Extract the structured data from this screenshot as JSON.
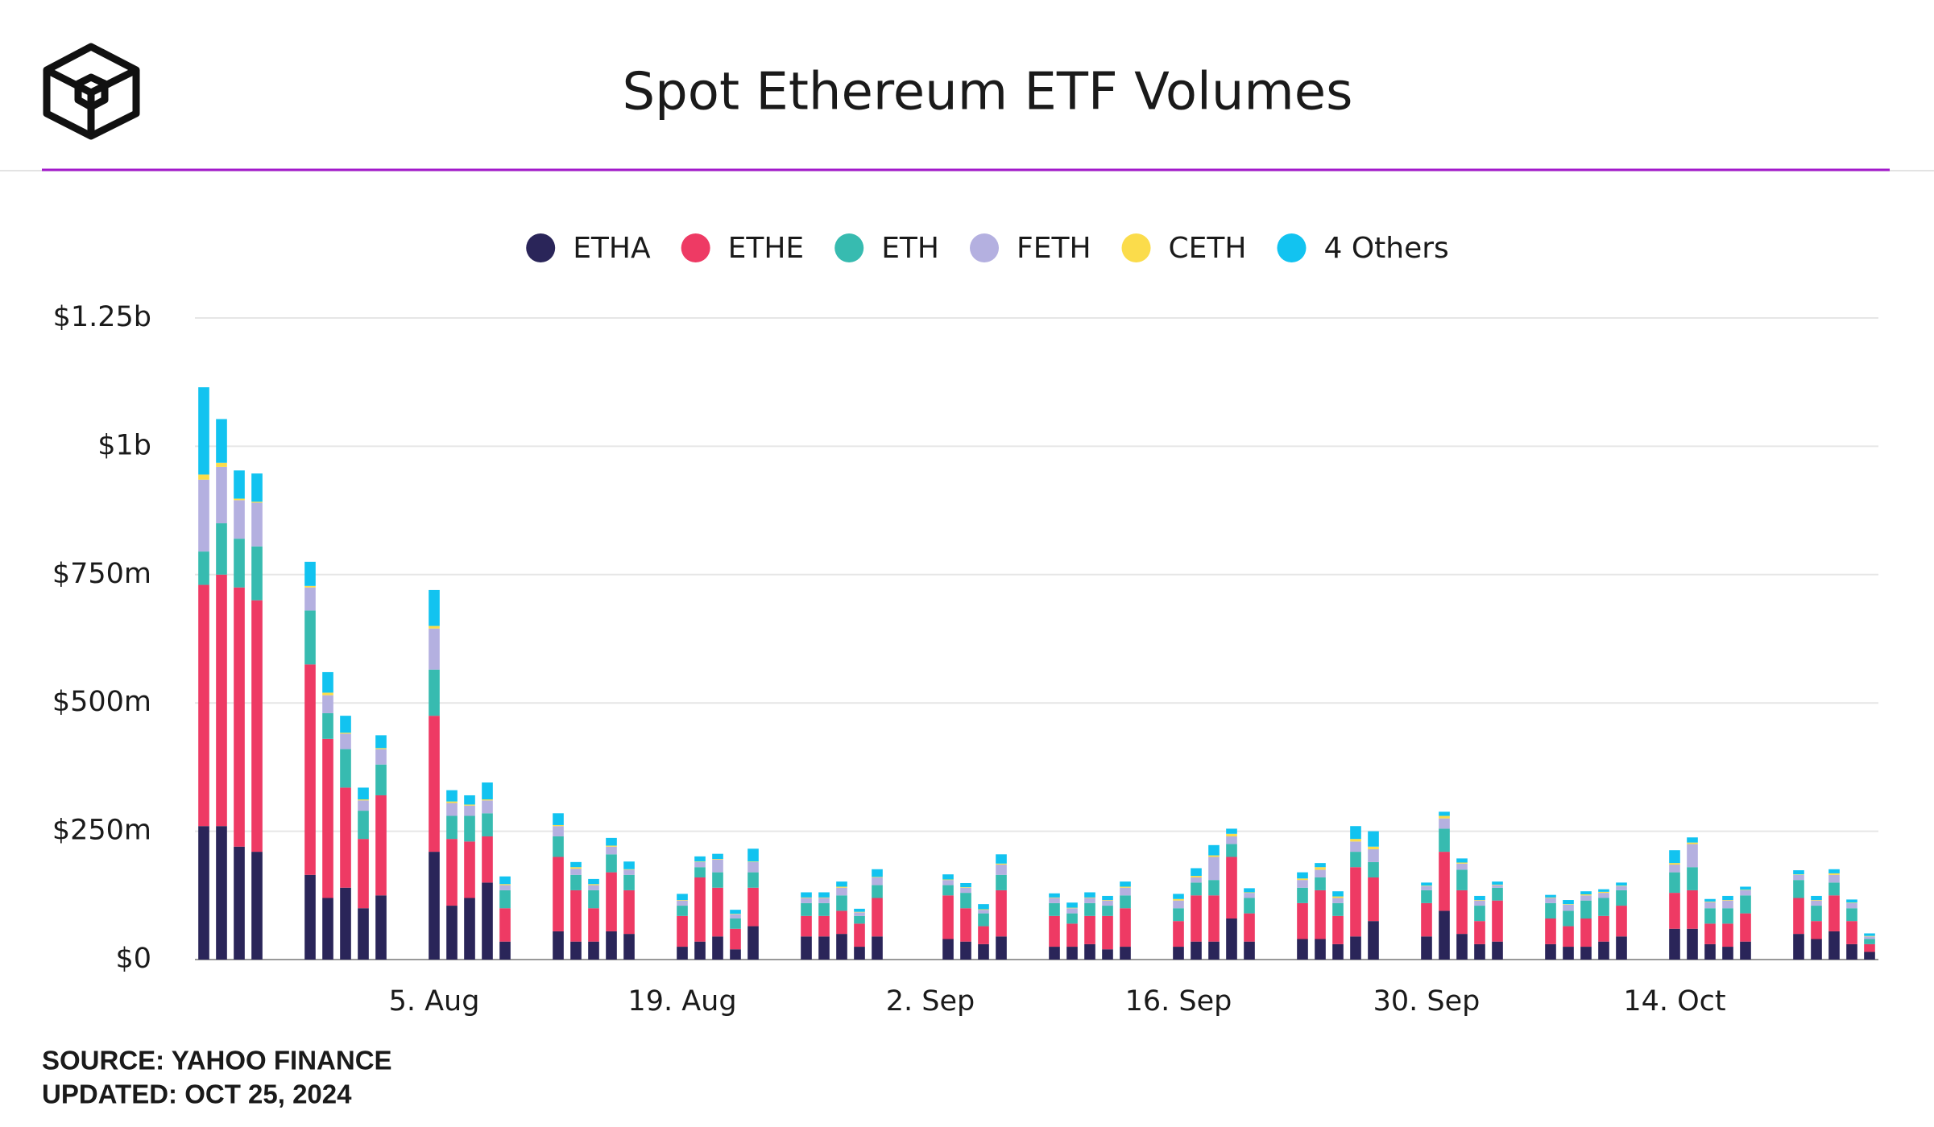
{
  "chart_data": {
    "type": "stacked_bar",
    "title": "Spot Ethereum ETF Volumes",
    "source": "SOURCE: YAHOO FINANCE",
    "updated": "UPDATED: OCT 25, 2024",
    "legend": "top",
    "grid": true,
    "x": [
      "23. Jul",
      "24. Jul",
      "25. Jul",
      "26. Jul",
      "29. Jul",
      "30. Jul",
      "31. Jul",
      "1. Aug",
      "2. Aug",
      "5. Aug",
      "6. Aug",
      "7. Aug",
      "8. Aug",
      "9. Aug",
      "12. Aug",
      "13. Aug",
      "14. Aug",
      "15. Aug",
      "16. Aug",
      "19. Aug",
      "20. Aug",
      "21. Aug",
      "22. Aug",
      "23. Aug",
      "26. Aug",
      "27. Aug",
      "28. Aug",
      "29. Aug",
      "30. Aug",
      "3. Sep",
      "4. Sep",
      "5. Sep",
      "6. Sep",
      "9. Sep",
      "10. Sep",
      "11. Sep",
      "12. Sep",
      "13. Sep",
      "16. Sep",
      "17. Sep",
      "18. Sep",
      "19. Sep",
      "20. Sep",
      "23. Sep",
      "24. Sep",
      "25. Sep",
      "26. Sep",
      "27. Sep",
      "30. Sep",
      "1. Oct",
      "2. Oct",
      "3. Oct",
      "4. Oct",
      "7. Oct",
      "8. Oct",
      "9. Oct",
      "10. Oct",
      "11. Oct",
      "14. Oct",
      "15. Oct",
      "16. Oct",
      "17. Oct",
      "18. Oct",
      "21. Oct",
      "22. Oct",
      "23. Oct",
      "24. Oct",
      "25. Oct"
    ],
    "xlim": [
      "23. Jul",
      "25. Oct"
    ],
    "xticks": [
      "5. Aug",
      "19. Aug",
      "2. Sep",
      "16. Sep",
      "30. Sep",
      "14. Oct"
    ],
    "ylim": [
      0,
      1250
    ],
    "yticks": [
      {
        "value": 0,
        "label": "$0"
      },
      {
        "value": 250,
        "label": "$250m"
      },
      {
        "value": 500,
        "label": "$500m"
      },
      {
        "value": 750,
        "label": "$750m"
      },
      {
        "value": 1000,
        "label": "$1b"
      },
      {
        "value": 1250,
        "label": "$1.25b"
      }
    ],
    "series": [
      {
        "name": "ETHA",
        "color": "#2a2559",
        "values": [
          260,
          260,
          220,
          210,
          165,
          120,
          140,
          100,
          125,
          210,
          105,
          120,
          150,
          35,
          55,
          35,
          35,
          55,
          50,
          25,
          35,
          45,
          20,
          65,
          45,
          45,
          50,
          25,
          45,
          40,
          35,
          30,
          45,
          25,
          25,
          30,
          20,
          25,
          25,
          35,
          35,
          80,
          35,
          40,
          40,
          30,
          45,
          75,
          45,
          95,
          50,
          30,
          35,
          30,
          25,
          25,
          35,
          45,
          60,
          60,
          30,
          25,
          35,
          50,
          40,
          55,
          30,
          15
        ]
      },
      {
        "name": "ETHE",
        "color": "#ee3a64",
        "values": [
          470,
          490,
          505,
          490,
          410,
          310,
          195,
          135,
          195,
          265,
          130,
          110,
          90,
          65,
          145,
          100,
          65,
          115,
          85,
          60,
          125,
          95,
          40,
          75,
          40,
          40,
          45,
          45,
          75,
          85,
          65,
          35,
          90,
          60,
          45,
          55,
          65,
          75,
          50,
          90,
          90,
          120,
          55,
          70,
          95,
          55,
          135,
          85,
          65,
          115,
          85,
          45,
          80,
          50,
          40,
          55,
          50,
          60,
          70,
          75,
          40,
          45,
          55,
          70,
          35,
          70,
          45,
          15
        ]
      },
      {
        "name": "ETH",
        "color": "#37bbb0",
        "values": [
          65,
          100,
          95,
          105,
          105,
          50,
          75,
          55,
          60,
          90,
          45,
          50,
          45,
          35,
          40,
          30,
          35,
          35,
          30,
          20,
          20,
          30,
          20,
          30,
          25,
          25,
          30,
          15,
          25,
          20,
          30,
          25,
          30,
          25,
          20,
          25,
          20,
          25,
          25,
          25,
          30,
          25,
          30,
          30,
          25,
          25,
          30,
          30,
          25,
          45,
          40,
          30,
          25,
          30,
          30,
          35,
          35,
          30,
          40,
          45,
          30,
          30,
          35,
          35,
          30,
          25,
          25,
          10
        ]
      },
      {
        "name": "FETH",
        "color": "#b4b0e0",
        "values": [
          140,
          110,
          75,
          85,
          45,
          35,
          30,
          20,
          30,
          80,
          25,
          20,
          25,
          10,
          20,
          12,
          10,
          15,
          10,
          10,
          10,
          25,
          8,
          20,
          10,
          10,
          15,
          7,
          15,
          10,
          10,
          7,
          20,
          10,
          10,
          10,
          10,
          15,
          15,
          10,
          45,
          15,
          10,
          15,
          15,
          10,
          20,
          25,
          8,
          20,
          12,
          10,
          5,
          10,
          12,
          10,
          10,
          8,
          15,
          45,
          12,
          15,
          10,
          10,
          10,
          15,
          10,
          5
        ]
      },
      {
        "name": "CETH",
        "color": "#fbdc4b",
        "values": [
          10,
          8,
          3,
          2,
          3,
          5,
          2,
          2,
          2,
          5,
          3,
          2,
          2,
          2,
          2,
          3,
          2,
          2,
          1,
          1,
          1,
          1,
          1,
          1,
          1,
          1,
          2,
          1,
          1,
          1,
          1,
          1,
          2,
          1,
          1,
          1,
          1,
          2,
          3,
          3,
          3,
          5,
          1,
          3,
          5,
          3,
          5,
          5,
          1,
          5,
          2,
          1,
          1,
          1,
          1,
          2,
          2,
          1,
          3,
          3,
          1,
          1,
          1,
          1,
          1,
          3,
          1,
          1
        ]
      },
      {
        "name": "4 Others",
        "color": "#12c3f0",
        "values": [
          170,
          85,
          55,
          55,
          47,
          40,
          33,
          23,
          25,
          70,
          22,
          18,
          33,
          15,
          23,
          10,
          10,
          15,
          15,
          12,
          10,
          10,
          8,
          25,
          10,
          10,
          10,
          6,
          15,
          10,
          8,
          10,
          18,
          8,
          10,
          10,
          8,
          10,
          10,
          15,
          20,
          10,
          8,
          12,
          8,
          10,
          25,
          30,
          6,
          8,
          8,
          8,
          6,
          5,
          8,
          6,
          5,
          6,
          25,
          10,
          5,
          8,
          6,
          8,
          8,
          8,
          6,
          5
        ]
      }
    ]
  }
}
